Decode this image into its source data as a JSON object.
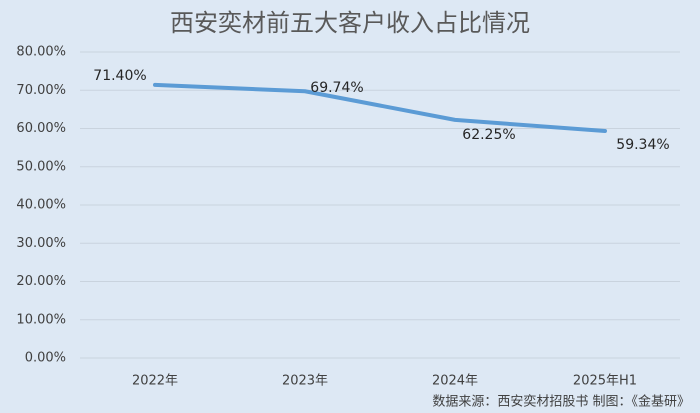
{
  "chart_data": {
    "type": "line",
    "title": "西安奕材前五大客户收入占比情况",
    "categories": [
      "2022年",
      "2023年",
      "2024年",
      "2025年H1"
    ],
    "series": [
      {
        "name": "前五大客户收入占比",
        "color": "#5b9bd5",
        "values": [
          71.4,
          69.74,
          62.25,
          59.34
        ],
        "value_labels": [
          "71.40%",
          "69.74%",
          "62.25%",
          "59.34%"
        ]
      }
    ],
    "ylim": [
      0,
      80
    ],
    "yticks": [
      {
        "value": 0,
        "label": "0.00%"
      },
      {
        "value": 10,
        "label": "10.00%"
      },
      {
        "value": 20,
        "label": "20.00%"
      },
      {
        "value": 30,
        "label": "30.00%"
      },
      {
        "value": 40,
        "label": "40.00%"
      },
      {
        "value": 50,
        "label": "50.00%"
      },
      {
        "value": 60,
        "label": "60.00%"
      },
      {
        "value": 70,
        "label": "70.00%"
      },
      {
        "value": 80,
        "label": "80.00%"
      }
    ],
    "grid": true,
    "source": "数据来源：西安奕材招股书  制图：《金基研》"
  }
}
